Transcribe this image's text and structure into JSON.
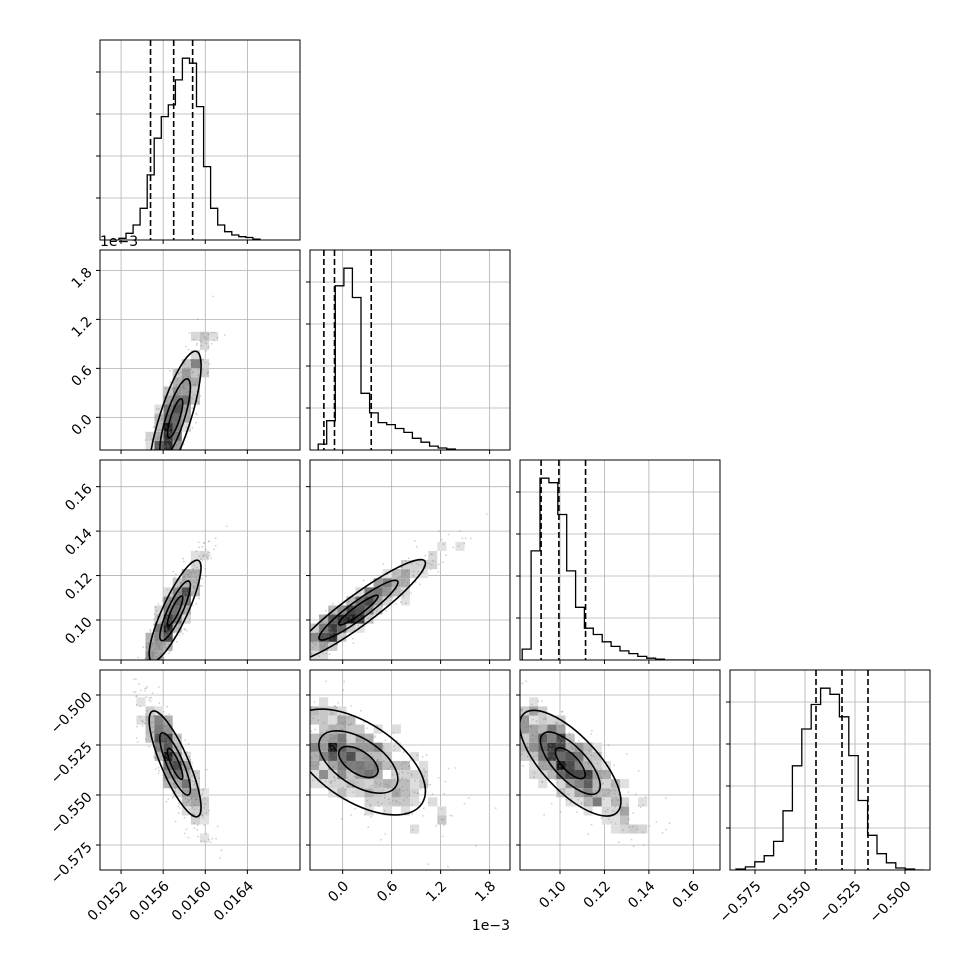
{
  "chart_data": {
    "type": "corner",
    "params": [
      {
        "range": [
          0.015,
          0.0169
        ],
        "ticks": [
          0.0152,
          0.0156,
          0.016,
          0.0164
        ],
        "tick_labels": [
          "0.0152",
          "0.0156",
          "0.0160",
          "0.0164"
        ],
        "offset_label": ""
      },
      {
        "range": [
          -0.0004,
          0.00205
        ],
        "ticks": [
          0.0,
          0.0006,
          0.0012,
          0.0018
        ],
        "tick_labels": [
          "0.0",
          "0.6",
          "1.2",
          "1.8"
        ],
        "offset_label": "1e−3"
      },
      {
        "range": [
          0.082,
          0.172
        ],
        "ticks": [
          0.1,
          0.12,
          0.14,
          0.16
        ],
        "tick_labels": [
          "0.10",
          "0.12",
          "0.14",
          "0.16"
        ],
        "offset_label": ""
      },
      {
        "range": [
          -0.5875,
          -0.4875
        ],
        "ticks": [
          -0.575,
          -0.55,
          -0.525,
          -0.5
        ],
        "tick_labels": [
          "−0.575",
          "−0.550",
          "−0.525",
          "−0.500"
        ],
        "offset_label": ""
      }
    ],
    "hist": [
      {
        "edges_range": [
          0.01518,
          0.01652
        ],
        "counts": [
          2,
          8,
          18,
          38,
          78,
          122,
          148,
          162,
          192,
          218,
          212,
          160,
          88,
          38,
          18,
          10,
          6,
          4,
          3,
          1
        ],
        "quantiles": [
          0.01548,
          0.0157,
          0.01588
        ]
      },
      {
        "edges_range": [
          -0.0003,
          0.0018
        ],
        "counts": [
          6,
          30,
          168,
          186,
          156,
          58,
          38,
          28,
          26,
          22,
          18,
          12,
          8,
          4,
          2,
          1,
          0,
          0,
          0,
          0
        ],
        "quantiles": [
          -0.00023,
          -0.0001,
          0.00035
        ]
      },
      {
        "edges_range": [
          0.083,
          0.163
        ],
        "counts": [
          12,
          120,
          200,
          195,
          160,
          98,
          58,
          35,
          28,
          20,
          15,
          10,
          7,
          4,
          2,
          1,
          0,
          0,
          0,
          0
        ],
        "quantiles": [
          0.0915,
          0.0995,
          0.1115
        ]
      },
      {
        "edges_range": [
          -0.5845,
          -0.4905
        ],
        "counts": [
          1,
          3,
          8,
          14,
          28,
          58,
          102,
          138,
          162,
          178,
          172,
          150,
          112,
          68,
          34,
          16,
          7,
          2,
          1,
          0
        ],
        "quantiles": [
          -0.5445,
          -0.5315,
          -0.5185
        ]
      }
    ],
    "pairs": [
      {
        "x": 0,
        "y": 1,
        "center": [
          0.01568,
          -0.0001
        ],
        "sx": 0.000135,
        "sy": 0.00045,
        "rho": 0.78
      },
      {
        "x": 0,
        "y": 2,
        "center": [
          0.01568,
          0.1015
        ],
        "sx": 0.000135,
        "sy": 0.0125,
        "rho": 0.85
      },
      {
        "x": 1,
        "y": 2,
        "center": [
          8e-05,
          0.1015
        ],
        "sx": 0.00045,
        "sy": 0.0125,
        "rho": 0.93
      },
      {
        "x": 0,
        "y": 3,
        "center": [
          0.01568,
          -0.5315
        ],
        "sx": 0.000135,
        "sy": 0.0145,
        "rho": -0.82
      },
      {
        "x": 1,
        "y": 3,
        "center": [
          8e-05,
          -0.5315
        ],
        "sx": 0.00045,
        "sy": 0.0145,
        "rho": -0.55
      },
      {
        "x": 2,
        "y": 3,
        "center": [
          0.1015,
          -0.5315
        ],
        "sx": 0.0125,
        "sy": 0.0145,
        "rho": -0.72
      }
    ],
    "grid": true,
    "histtype": "step",
    "quantiles_style": "dashed"
  }
}
